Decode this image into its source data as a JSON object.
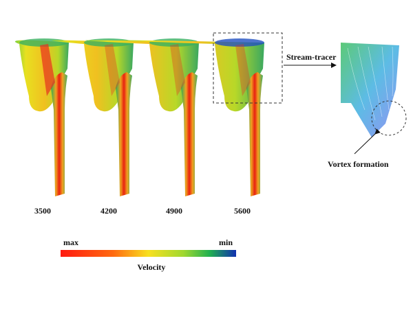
{
  "panels": [
    {
      "label": "3500"
    },
    {
      "label": "4200"
    },
    {
      "label": "4900"
    },
    {
      "label": "5600"
    }
  ],
  "annotations": {
    "stream_tracer": "Stream-tracer",
    "vortex": "Vortex formation"
  },
  "colorbar": {
    "max_label": "max",
    "min_label": "min",
    "title": "Velocity"
  }
}
